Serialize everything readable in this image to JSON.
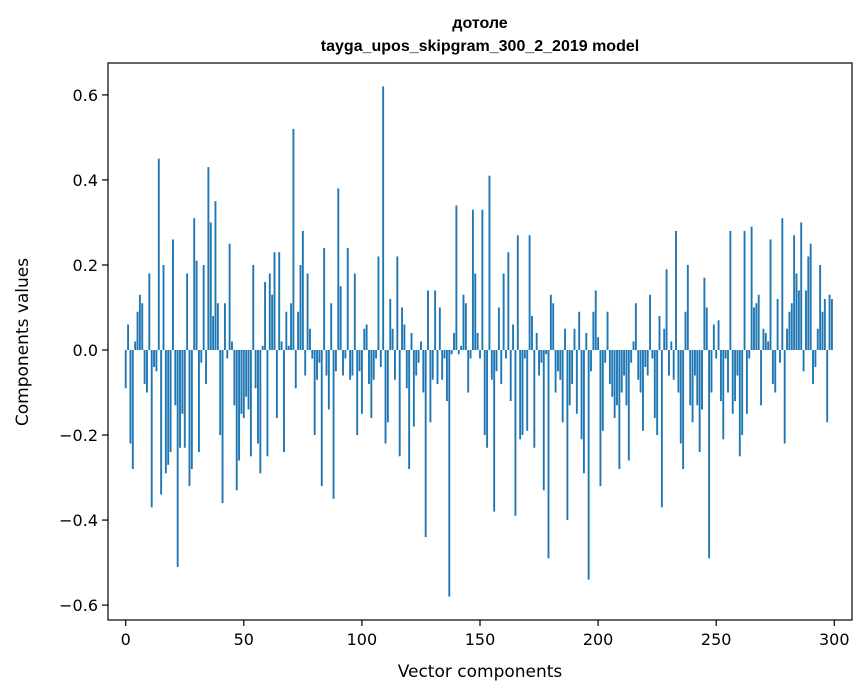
{
  "chart_data": {
    "type": "bar",
    "title": "дотоле",
    "subtitle": "tayga_upos_skipgram_300_2_2019 model",
    "xlabel": "Vector components",
    "ylabel": "Components values",
    "xlim": [
      -7.5,
      307.5
    ],
    "ylim": [
      -0.635,
      0.675
    ],
    "grid": false,
    "bar_color": "#1f77b4",
    "xticks": [
      {
        "value": 0,
        "label": "0"
      },
      {
        "value": 50,
        "label": "50"
      },
      {
        "value": 100,
        "label": "100"
      },
      {
        "value": 150,
        "label": "150"
      },
      {
        "value": 200,
        "label": "200"
      },
      {
        "value": 250,
        "label": "250"
      },
      {
        "value": 300,
        "label": "300"
      }
    ],
    "yticks": [
      {
        "value": -0.6,
        "label": "−0.6"
      },
      {
        "value": -0.4,
        "label": "−0.4"
      },
      {
        "value": -0.2,
        "label": "−0.2"
      },
      {
        "value": 0.0,
        "label": "0.0"
      },
      {
        "value": 0.2,
        "label": "0.2"
      },
      {
        "value": 0.4,
        "label": "0.4"
      },
      {
        "value": 0.6,
        "label": "0.6"
      }
    ],
    "values": [
      -0.09,
      0.06,
      -0.22,
      -0.28,
      0.02,
      0.09,
      0.13,
      0.11,
      -0.08,
      -0.1,
      0.18,
      -0.37,
      -0.04,
      -0.05,
      0.45,
      -0.34,
      0.2,
      -0.29,
      -0.27,
      -0.24,
      0.26,
      -0.13,
      -0.51,
      -0.23,
      -0.15,
      -0.23,
      0.18,
      -0.32,
      -0.28,
      0.31,
      0.21,
      -0.24,
      -0.03,
      0.2,
      -0.08,
      0.43,
      0.3,
      0.08,
      0.35,
      0.11,
      -0.2,
      -0.36,
      0.11,
      -0.02,
      0.25,
      0.02,
      -0.13,
      -0.33,
      -0.26,
      -0.15,
      -0.16,
      -0.11,
      -0.14,
      -0.25,
      0.2,
      -0.09,
      -0.22,
      -0.29,
      0.01,
      0.16,
      -0.25,
      0.18,
      0.13,
      0.23,
      -0.16,
      0.23,
      0.02,
      -0.24,
      0.09,
      0.01,
      0.11,
      0.52,
      -0.09,
      0.09,
      0.2,
      0.28,
      -0.06,
      0.18,
      0.05,
      -0.02,
      -0.2,
      -0.07,
      -0.03,
      -0.32,
      0.24,
      -0.06,
      -0.14,
      0.11,
      -0.35,
      -0.05,
      0.38,
      0.15,
      -0.06,
      -0.02,
      0.24,
      -0.07,
      -0.06,
      0.18,
      -0.2,
      -0.05,
      -0.15,
      0.05,
      0.06,
      -0.08,
      -0.16,
      -0.07,
      -0.02,
      0.22,
      -0.04,
      0.62,
      -0.22,
      -0.17,
      0.12,
      0.05,
      -0.07,
      0.22,
      -0.25,
      0.1,
      0.06,
      -0.09,
      -0.28,
      0.04,
      -0.18,
      -0.06,
      -0.03,
      0.02,
      -0.1,
      -0.44,
      0.14,
      -0.17,
      -0.07,
      0.14,
      -0.08,
      0.1,
      -0.07,
      -0.02,
      -0.12,
      -0.58,
      -0.01,
      0.04,
      0.34,
      -0.01,
      0.01,
      0.13,
      0.11,
      -0.1,
      -0.02,
      0.33,
      0.18,
      0.04,
      -0.02,
      0.33,
      -0.2,
      -0.23,
      0.41,
      -0.07,
      -0.38,
      -0.05,
      0.1,
      -0.08,
      0.18,
      -0.02,
      0.23,
      -0.12,
      0.06,
      -0.39,
      0.27,
      -0.21,
      -0.2,
      -0.02,
      -0.19,
      0.27,
      0.08,
      -0.23,
      0.04,
      -0.06,
      -0.03,
      -0.33,
      -0.01,
      -0.49,
      0.13,
      0.11,
      -0.1,
      -0.05,
      -0.07,
      -0.17,
      0.05,
      -0.4,
      -0.13,
      -0.08,
      0.05,
      -0.15,
      0.09,
      -0.21,
      -0.29,
      0.04,
      -0.54,
      -0.05,
      0.09,
      0.14,
      0.03,
      -0.32,
      -0.19,
      -0.03,
      0.09,
      -0.08,
      -0.11,
      -0.16,
      -0.13,
      -0.28,
      -0.1,
      -0.06,
      -0.13,
      -0.26,
      -0.03,
      0.02,
      0.11,
      -0.07,
      -0.1,
      -0.19,
      -0.04,
      -0.06,
      0.13,
      -0.02,
      -0.16,
      -0.2,
      0.08,
      -0.37,
      0.05,
      0.19,
      -0.06,
      0.02,
      -0.07,
      0.28,
      -0.1,
      -0.22,
      -0.28,
      0.09,
      0.2,
      -0.13,
      -0.17,
      -0.06,
      -0.13,
      -0.24,
      -0.14,
      0.17,
      0.1,
      -0.49,
      -0.1,
      0.06,
      -0.02,
      0.07,
      -0.12,
      -0.21,
      -0.02,
      -0.1,
      0.28,
      -0.15,
      -0.12,
      -0.06,
      -0.25,
      -0.2,
      0.28,
      -0.15,
      -0.02,
      0.29,
      0.1,
      0.11,
      0.13,
      -0.13,
      0.05,
      0.04,
      0.02,
      0.26,
      -0.08,
      -0.1,
      0.12,
      -0.03,
      0.31,
      -0.22,
      0.05,
      0.09,
      0.11,
      0.27,
      0.18,
      0.14,
      0.3,
      -0.05,
      0.14,
      0.22,
      0.25,
      -0.08,
      -0.04,
      0.05,
      0.2,
      0.09,
      0.12,
      -0.17,
      0.13,
      0.12
    ]
  }
}
